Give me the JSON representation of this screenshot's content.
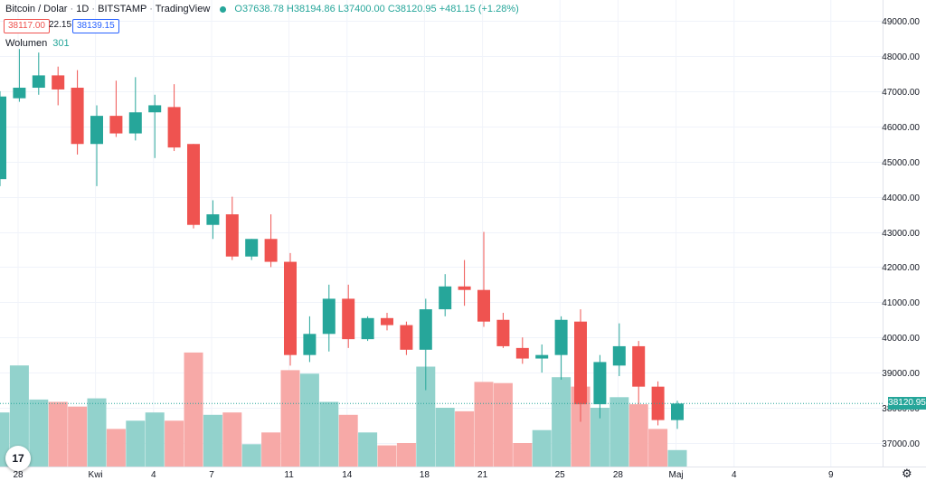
{
  "legend": {
    "symbol": "Bitcoin / Dolar",
    "interval": "1D",
    "exchange": "BITSTAMP",
    "platform": "TradingView",
    "ohlc": "O37638.78 H38194.86 L37400.00 C38120.95 +481.15 (+1.28%)",
    "sell_price": "38117.00",
    "spread": "22.15",
    "buy_price": "38139.15",
    "volume_label": "Wolumen",
    "volume_value": "301"
  },
  "last_price_label": "38120.95",
  "logo_text": "17",
  "colors": {
    "up": "#26a69a",
    "down": "#ef5350",
    "vol_up": "#92d2cc",
    "vol_down": "#f7a9a7"
  },
  "chart_data": {
    "type": "candlestick",
    "last_price": 38120.95,
    "y_ticks": [
      "49000.00",
      "48000.00",
      "47000.00",
      "46000.00",
      "45000.00",
      "44000.00",
      "43000.00",
      "42000.00",
      "41000.00",
      "40000.00",
      "39000.00",
      "38000.00",
      "37000.00"
    ],
    "ylim": [
      36500,
      49300
    ],
    "x_labels": [
      {
        "label": "28",
        "i": 0
      },
      {
        "label": "Kwi",
        "i": 4
      },
      {
        "label": "4",
        "i": 7
      },
      {
        "label": "7",
        "i": 10
      },
      {
        "label": "11",
        "i": 14
      },
      {
        "label": "14",
        "i": 17
      },
      {
        "label": "18",
        "i": 21
      },
      {
        "label": "21",
        "i": 24
      },
      {
        "label": "25",
        "i": 28
      },
      {
        "label": "28",
        "i": 31
      },
      {
        "label": "Maj",
        "i": 34
      },
      {
        "label": "4",
        "i": 37
      },
      {
        "label": "9",
        "i": 42
      }
    ],
    "candles": [
      {
        "o": 44500,
        "h": 47000,
        "l": 44300,
        "c": 46850,
        "v": 0.46
      },
      {
        "o": 46800,
        "h": 48200,
        "l": 46700,
        "c": 47100,
        "v": 0.86
      },
      {
        "o": 47100,
        "h": 48100,
        "l": 46900,
        "c": 47450,
        "v": 0.57
      },
      {
        "o": 47450,
        "h": 47700,
        "l": 46600,
        "c": 47050,
        "v": 0.55
      },
      {
        "o": 47100,
        "h": 47600,
        "l": 45200,
        "c": 45500,
        "v": 0.51
      },
      {
        "o": 45500,
        "h": 46600,
        "l": 44300,
        "c": 46300,
        "v": 0.58
      },
      {
        "o": 46300,
        "h": 47300,
        "l": 45700,
        "c": 45800,
        "v": 0.32
      },
      {
        "o": 45800,
        "h": 47400,
        "l": 45600,
        "c": 46400,
        "v": 0.39
      },
      {
        "o": 46400,
        "h": 46900,
        "l": 45100,
        "c": 46600,
        "v": 0.46
      },
      {
        "o": 46550,
        "h": 47200,
        "l": 45300,
        "c": 45400,
        "v": 0.39
      },
      {
        "o": 45500,
        "h": 45500,
        "l": 43100,
        "c": 43200,
        "v": 0.97
      },
      {
        "o": 43200,
        "h": 43900,
        "l": 42800,
        "c": 43500,
        "v": 0.44
      },
      {
        "o": 43500,
        "h": 44000,
        "l": 42200,
        "c": 42300,
        "v": 0.46
      },
      {
        "o": 42300,
        "h": 42800,
        "l": 42200,
        "c": 42800,
        "v": 0.19
      },
      {
        "o": 42800,
        "h": 43500,
        "l": 42000,
        "c": 42150,
        "v": 0.29
      },
      {
        "o": 42150,
        "h": 42400,
        "l": 39200,
        "c": 39500,
        "v": 0.82
      },
      {
        "o": 39500,
        "h": 40600,
        "l": 39300,
        "c": 40100,
        "v": 0.79
      },
      {
        "o": 40100,
        "h": 41500,
        "l": 39600,
        "c": 41100,
        "v": 0.55
      },
      {
        "o": 41100,
        "h": 41500,
        "l": 39700,
        "c": 39950,
        "v": 0.44
      },
      {
        "o": 39950,
        "h": 40600,
        "l": 39900,
        "c": 40550,
        "v": 0.29
      },
      {
        "o": 40550,
        "h": 40700,
        "l": 40200,
        "c": 40350,
        "v": 0.18
      },
      {
        "o": 40350,
        "h": 40450,
        "l": 39500,
        "c": 39650,
        "v": 0.2
      },
      {
        "o": 39650,
        "h": 41100,
        "l": 38500,
        "c": 40800,
        "v": 0.85
      },
      {
        "o": 40800,
        "h": 41800,
        "l": 40600,
        "c": 41450,
        "v": 0.5
      },
      {
        "o": 41450,
        "h": 42200,
        "l": 40900,
        "c": 41350,
        "v": 0.47
      },
      {
        "o": 41350,
        "h": 43000,
        "l": 40300,
        "c": 40450,
        "v": 0.72
      },
      {
        "o": 40500,
        "h": 40700,
        "l": 39700,
        "c": 39750,
        "v": 0.71
      },
      {
        "o": 39700,
        "h": 40000,
        "l": 39250,
        "c": 39400,
        "v": 0.2
      },
      {
        "o": 39400,
        "h": 39800,
        "l": 39000,
        "c": 39500,
        "v": 0.31
      },
      {
        "o": 39500,
        "h": 40600,
        "l": 38800,
        "c": 40500,
        "v": 0.76
      },
      {
        "o": 40450,
        "h": 40800,
        "l": 37600,
        "c": 38100,
        "v": 0.68
      },
      {
        "o": 38100,
        "h": 39500,
        "l": 37700,
        "c": 39300,
        "v": 0.5
      },
      {
        "o": 39200,
        "h": 40400,
        "l": 38900,
        "c": 39750,
        "v": 0.59
      },
      {
        "o": 39750,
        "h": 39900,
        "l": 38100,
        "c": 38600,
        "v": 0.53
      },
      {
        "o": 38600,
        "h": 38750,
        "l": 37500,
        "c": 37650,
        "v": 0.32
      },
      {
        "o": 37650,
        "h": 38200,
        "l": 37400,
        "c": 38120,
        "v": 0.14
      }
    ]
  }
}
